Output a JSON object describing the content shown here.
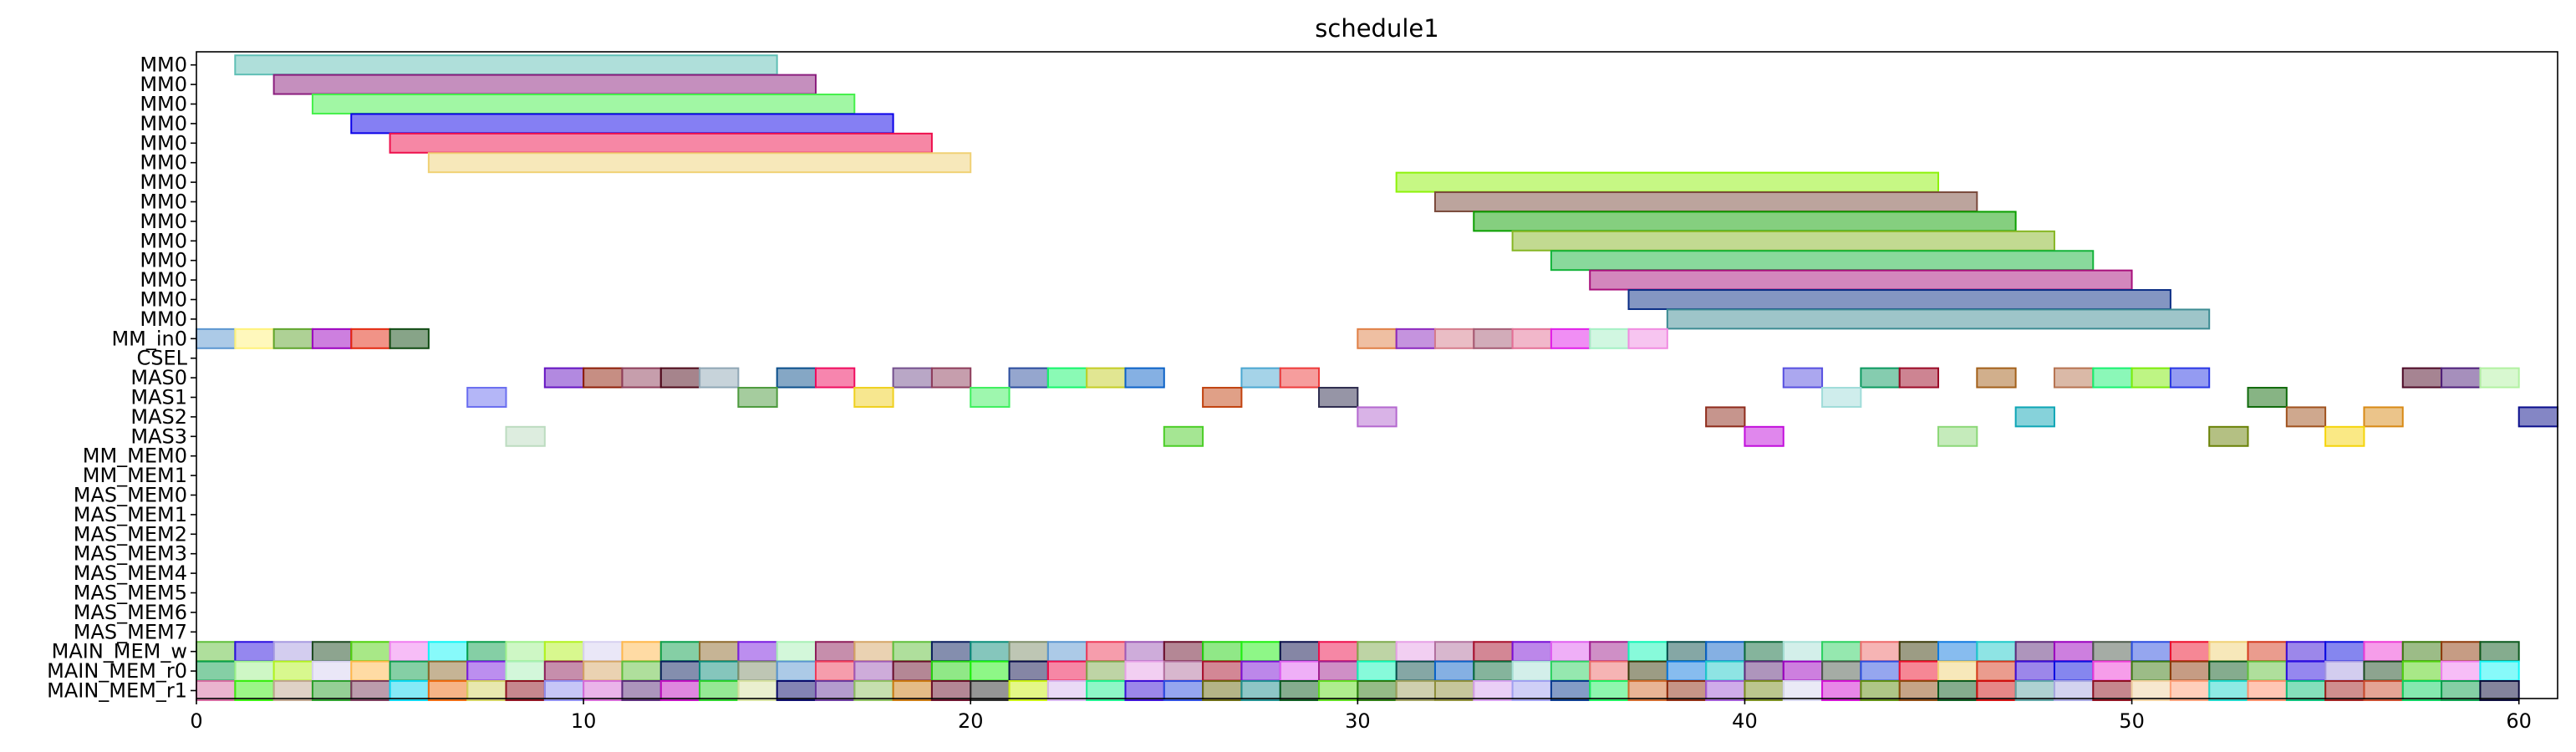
{
  "chart_data": {
    "type": "gantt",
    "title": "schedule1",
    "xlim": [
      0,
      61
    ],
    "xticks": [
      "0",
      "10",
      "20",
      "30",
      "40",
      "50",
      "60"
    ],
    "xtick_values": [
      0,
      10,
      20,
      30,
      40,
      50,
      60
    ],
    "grid": false,
    "legend": "none",
    "rows": [
      "MM0",
      "MM0",
      "MM0",
      "MM0",
      "MM0",
      "MM0",
      "MM0",
      "MM0",
      "MM0",
      "MM0",
      "MM0",
      "MM0",
      "MM0",
      "MM0",
      "MM_in0",
      "CSEL",
      "MAS0",
      "MAS1",
      "MAS2",
      "MAS3",
      "MM_MEM0",
      "MM_MEM1",
      "MAS_MEM0",
      "MAS_MEM1",
      "MAS_MEM2",
      "MAS_MEM3",
      "MAS_MEM4",
      "MAS_MEM5",
      "MAS_MEM6",
      "MAS_MEM7",
      "MAIN_MEM_w",
      "MAIN_MEM_r0",
      "MAIN_MEM_r1"
    ],
    "tasks": [
      {
        "row": 0,
        "start": 1,
        "end": 15,
        "color": "#5fbfb5"
      },
      {
        "row": 1,
        "start": 2,
        "end": 16,
        "color": "#8b1f7e"
      },
      {
        "row": 2,
        "start": 3,
        "end": 17,
        "color": "#44f04a"
      },
      {
        "row": 3,
        "start": 4,
        "end": 18,
        "color": "#0b00e8"
      },
      {
        "row": 4,
        "start": 5,
        "end": 19,
        "color": "#ee0f4c"
      },
      {
        "row": 5,
        "start": 6,
        "end": 20,
        "color": "#f0d175"
      },
      {
        "row": 6,
        "start": 31,
        "end": 45,
        "color": "#8ef20a"
      },
      {
        "row": 7,
        "start": 32,
        "end": 46,
        "color": "#7a4a3c"
      },
      {
        "row": 8,
        "start": 33,
        "end": 47,
        "color": "#0b9f00"
      },
      {
        "row": 9,
        "start": 34,
        "end": 48,
        "color": "#86b624"
      },
      {
        "row": 10,
        "start": 35,
        "end": 49,
        "color": "#13b33a"
      },
      {
        "row": 11,
        "start": 36,
        "end": 50,
        "color": "#a80f7b"
      },
      {
        "row": 12,
        "start": 37,
        "end": 51,
        "color": "#0a2d85"
      },
      {
        "row": 13,
        "start": 38,
        "end": 52,
        "color": "#3d8c93"
      },
      {
        "row": 14,
        "start": 0,
        "end": 1,
        "color": "#5a95d0"
      },
      {
        "row": 14,
        "start": 1,
        "end": 2,
        "color": "#fff27a"
      },
      {
        "row": 14,
        "start": 2,
        "end": 3,
        "color": "#5ea42b"
      },
      {
        "row": 14,
        "start": 3,
        "end": 4,
        "color": "#9b00bf"
      },
      {
        "row": 14,
        "start": 4,
        "end": 5,
        "color": "#e3280f"
      },
      {
        "row": 14,
        "start": 5,
        "end": 6,
        "color": "#0f4a12"
      },
      {
        "row": 14,
        "start": 30,
        "end": 31,
        "color": "#e07f45"
      },
      {
        "row": 14,
        "start": 31,
        "end": 32,
        "color": "#8c27be"
      },
      {
        "row": 14,
        "start": 32,
        "end": 33,
        "color": "#d57b8b"
      },
      {
        "row": 14,
        "start": 33,
        "end": 34,
        "color": "#a55a73"
      },
      {
        "row": 14,
        "start": 34,
        "end": 35,
        "color": "#e47096"
      },
      {
        "row": 14,
        "start": 35,
        "end": 36,
        "color": "#e11ee9"
      },
      {
        "row": 14,
        "start": 36,
        "end": 37,
        "color": "#a4f0c4"
      },
      {
        "row": 14,
        "start": 37,
        "end": 38,
        "color": "#f08be1"
      },
      {
        "row": 16,
        "start": 9,
        "end": 10,
        "color": "#6514c2"
      },
      {
        "row": 16,
        "start": 10,
        "end": 11,
        "color": "#8e1e08"
      },
      {
        "row": 16,
        "start": 11,
        "end": 12,
        "color": "#8e3e5a"
      },
      {
        "row": 16,
        "start": 12,
        "end": 13,
        "color": "#4e0a1a"
      },
      {
        "row": 16,
        "start": 13,
        "end": 14,
        "color": "#8fa7b5"
      },
      {
        "row": 16,
        "start": 15,
        "end": 16,
        "color": "#0b4f8b"
      },
      {
        "row": 16,
        "start": 16,
        "end": 17,
        "color": "#ef0c5e"
      },
      {
        "row": 16,
        "start": 18,
        "end": 19,
        "color": "#74508e"
      },
      {
        "row": 16,
        "start": 19,
        "end": 20,
        "color": "#8e3d5b"
      },
      {
        "row": 16,
        "start": 21,
        "end": 22,
        "color": "#2b4d9e"
      },
      {
        "row": 16,
        "start": 22,
        "end": 23,
        "color": "#15f56b"
      },
      {
        "row": 16,
        "start": 23,
        "end": 24,
        "color": "#c4cd25"
      },
      {
        "row": 16,
        "start": 24,
        "end": 25,
        "color": "#0c62c7"
      },
      {
        "row": 16,
        "start": 27,
        "end": 28,
        "color": "#4ba7d1"
      },
      {
        "row": 16,
        "start": 28,
        "end": 29,
        "color": "#ee3b3b"
      },
      {
        "row": 16,
        "start": 41,
        "end": 42,
        "color": "#5750e0"
      },
      {
        "row": 16,
        "start": 43,
        "end": 44,
        "color": "#0c9960"
      },
      {
        "row": 16,
        "start": 44,
        "end": 45,
        "color": "#9b0a26"
      },
      {
        "row": 16,
        "start": 46,
        "end": 47,
        "color": "#a3601a"
      },
      {
        "row": 16,
        "start": 48,
        "end": 49,
        "color": "#b67350"
      },
      {
        "row": 16,
        "start": 49,
        "end": 50,
        "color": "#17f271"
      },
      {
        "row": 16,
        "start": 50,
        "end": 51,
        "color": "#7dec0a"
      },
      {
        "row": 16,
        "start": 51,
        "end": 52,
        "color": "#2a37e5"
      },
      {
        "row": 16,
        "start": 57,
        "end": 58,
        "color": "#4e0a26"
      },
      {
        "row": 16,
        "start": 58,
        "end": 59,
        "color": "#4e207a"
      },
      {
        "row": 16,
        "start": 59,
        "end": 60,
        "color": "#b2f2a2"
      },
      {
        "row": 17,
        "start": 7,
        "end": 8,
        "color": "#6a6ef0"
      },
      {
        "row": 17,
        "start": 14,
        "end": 15,
        "color": "#4c9a3d"
      },
      {
        "row": 17,
        "start": 17,
        "end": 18,
        "color": "#efd01f"
      },
      {
        "row": 17,
        "start": 20,
        "end": 21,
        "color": "#3ef05e"
      },
      {
        "row": 17,
        "start": 26,
        "end": 27,
        "color": "#c1420f"
      },
      {
        "row": 17,
        "start": 29,
        "end": 30,
        "color": "#2d2b4e"
      },
      {
        "row": 17,
        "start": 42,
        "end": 43,
        "color": "#9fdcd9"
      },
      {
        "row": 17,
        "start": 53,
        "end": 54,
        "color": "#0f6a0a"
      },
      {
        "row": 18,
        "start": 30,
        "end": 31,
        "color": "#b468cf"
      },
      {
        "row": 18,
        "start": 39,
        "end": 40,
        "color": "#8e2b1b"
      },
      {
        "row": 18,
        "start": 47,
        "end": 48,
        "color": "#0ea5b5"
      },
      {
        "row": 18,
        "start": 54,
        "end": 55,
        "color": "#a0521e"
      },
      {
        "row": 18,
        "start": 56,
        "end": 57,
        "color": "#d88a15"
      },
      {
        "row": 18,
        "start": 60,
        "end": 61,
        "color": "#0a0e8c"
      },
      {
        "row": 19,
        "start": 8,
        "end": 9,
        "color": "#bcdcc0"
      },
      {
        "row": 19,
        "start": 25,
        "end": 26,
        "color": "#4bce27"
      },
      {
        "row": 19,
        "start": 40,
        "end": 41,
        "color": "#c20fdc"
      },
      {
        "row": 19,
        "start": 45,
        "end": 46,
        "color": "#8cd878"
      },
      {
        "row": 19,
        "start": 52,
        "end": 53,
        "color": "#6a8207"
      },
      {
        "row": 19,
        "start": 55,
        "end": 56,
        "color": "#f5d40b"
      }
    ],
    "main_mem_rows": [
      30,
      31,
      32
    ],
    "main_mem_xrange": [
      0,
      60
    ]
  }
}
